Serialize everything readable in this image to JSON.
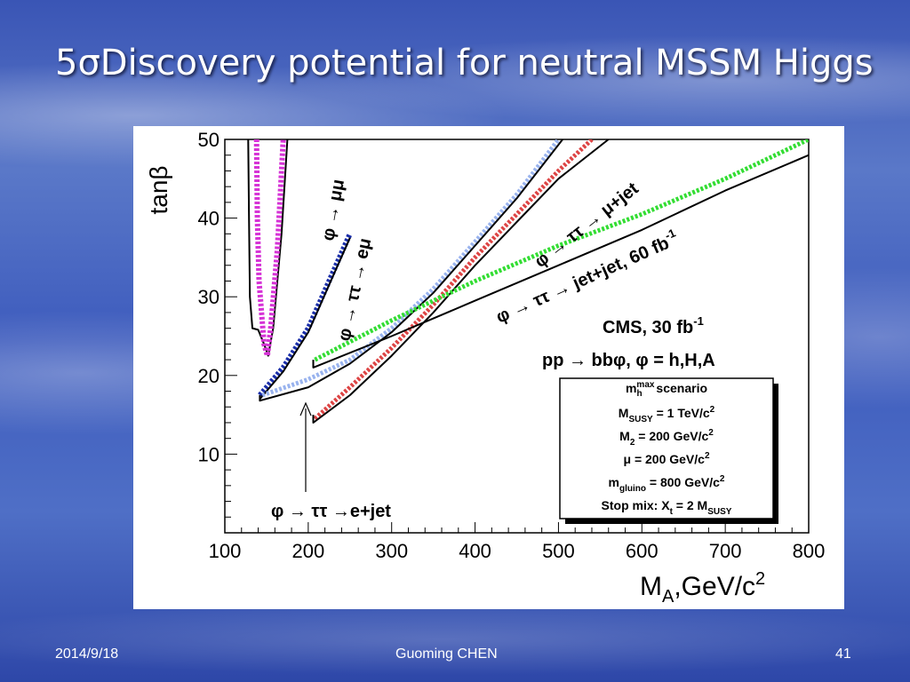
{
  "slide": {
    "title": "5σDiscovery potential for neutral MSSM Higgs",
    "date": "2014/9/18",
    "author": "Guoming CHEN",
    "page": "41"
  },
  "chart_data": {
    "type": "line",
    "xlabel": "M",
    "xlabel_sub": "A",
    "xlabel_unit": ",GeV/c",
    "xlabel_sup": "2",
    "ylabel": "tanβ",
    "xlim": [
      100,
      800
    ],
    "ylim": [
      0,
      50
    ],
    "x_ticks": [
      100,
      200,
      300,
      400,
      500,
      600,
      700,
      800
    ],
    "y_ticks": [
      10,
      20,
      30,
      40,
      50
    ],
    "grid": false,
    "series": [
      {
        "name": "φ → μμ",
        "color": "#000000",
        "dash": false,
        "width": 2,
        "points": [
          [
            128,
            50
          ],
          [
            129,
            40
          ],
          [
            130,
            30
          ],
          [
            133,
            26
          ],
          [
            140,
            25.8
          ],
          [
            147,
            24
          ],
          [
            152,
            22.5
          ],
          [
            158,
            26
          ],
          [
            168,
            38
          ],
          [
            175,
            50
          ]
        ]
      },
      {
        "name": "",
        "color": "#d633d6",
        "dash": true,
        "width": 6,
        "points": [
          [
            138,
            50
          ],
          [
            139,
            40
          ],
          [
            141,
            32
          ],
          [
            147,
            24
          ],
          [
            151,
            22.5
          ],
          [
            155,
            26
          ],
          [
            163,
            36
          ],
          [
            170,
            50
          ]
        ]
      },
      {
        "name": "φ → ττ → eμ",
        "color": "#1a2ea8",
        "dash": true,
        "width": 6,
        "points": [
          [
            142,
            17.5
          ],
          [
            170,
            21
          ],
          [
            200,
            26
          ],
          [
            225,
            32
          ],
          [
            250,
            38
          ]
        ]
      },
      {
        "name": "",
        "color": "#000000",
        "dash": false,
        "width": 2,
        "points": [
          [
            142,
            17
          ],
          [
            170,
            20.5
          ],
          [
            200,
            25.5
          ],
          [
            225,
            31.5
          ],
          [
            250,
            37.5
          ]
        ]
      },
      {
        "name": "φ → ττ → μ+jet",
        "color": "#99b3ee",
        "dash": true,
        "width": 5,
        "points": [
          [
            145,
            17.5
          ],
          [
            200,
            19.5
          ],
          [
            250,
            22
          ],
          [
            300,
            26
          ],
          [
            350,
            31
          ],
          [
            400,
            37
          ],
          [
            450,
            43
          ],
          [
            500,
            50
          ]
        ]
      },
      {
        "name": "",
        "color": "#000000",
        "dash": false,
        "width": 2,
        "points": [
          [
            142,
            17.5
          ],
          [
            142,
            16.8
          ],
          [
            200,
            18.5
          ],
          [
            250,
            21.5
          ],
          [
            300,
            25.5
          ],
          [
            350,
            30.5
          ],
          [
            400,
            36.5
          ],
          [
            450,
            42.5
          ],
          [
            505,
            50
          ]
        ]
      },
      {
        "name": "φ → ττ → e+jet",
        "color": "#dd4444",
        "dash": true,
        "width": 5,
        "points": [
          [
            208,
            14.5
          ],
          [
            250,
            18.5
          ],
          [
            300,
            23.5
          ],
          [
            350,
            29
          ],
          [
            400,
            35
          ],
          [
            450,
            40.5
          ],
          [
            500,
            46
          ],
          [
            540,
            50
          ]
        ]
      },
      {
        "name": "",
        "color": "#000000",
        "dash": false,
        "width": 2,
        "points": [
          [
            206,
            15
          ],
          [
            206,
            14
          ],
          [
            250,
            17.5
          ],
          [
            300,
            22.5
          ],
          [
            350,
            28
          ],
          [
            400,
            34
          ],
          [
            450,
            39.5
          ],
          [
            500,
            45
          ],
          [
            560,
            50
          ]
        ]
      },
      {
        "name": "φ → ττ → jet+jet, 60 fb-1",
        "color": "#33dd33",
        "dash": true,
        "width": 5,
        "points": [
          [
            208,
            22
          ],
          [
            300,
            27
          ],
          [
            400,
            32
          ],
          [
            500,
            36.5
          ],
          [
            600,
            40.5
          ],
          [
            700,
            45
          ],
          [
            800,
            50
          ]
        ]
      },
      {
        "name": "",
        "color": "#000000",
        "dash": false,
        "width": 2,
        "points": [
          [
            206,
            22
          ],
          [
            206,
            21
          ],
          [
            300,
            25
          ],
          [
            400,
            29.5
          ],
          [
            500,
            34
          ],
          [
            600,
            38.5
          ],
          [
            700,
            43.5
          ],
          [
            800,
            48
          ]
        ]
      }
    ],
    "annotations": {
      "mumu": "φ → μμ",
      "emu": "φ → ττ → eμ",
      "mujet": "φ → ττ → μ+jet",
      "jetjet": "φ → ττ → jet+jet, 60 fb",
      "jetjet_sup": "-1",
      "ejet": "φ → ττ →e+jet",
      "cms": "CMS, 30 fb",
      "cms_sup": "-1",
      "process": "pp → bbφ, φ = h,H,A"
    },
    "scenario_box": {
      "line1_main": "m",
      "line1_sup": "max",
      "line1_sub": "h",
      "line1_rest": " scenario",
      "line2_main": "M",
      "line2_sub": "SUSY",
      "line2_rest": " = 1 TeV/c",
      "line2_sup": "2",
      "line3_main": "M",
      "line3_sub": "2",
      "line3_rest": " = 200 GeV/c",
      "line3_sup": "2",
      "line4_main": "μ = 200 GeV/c",
      "line4_sup": "2",
      "line5_main": "m",
      "line5_sub": "gluino",
      "line5_rest": " = 800 GeV/c",
      "line5_sup": "2",
      "line6_main": "Stop mix: X",
      "line6_sub": "t",
      "line6_rest": " = 2 M",
      "line6_sub2": "SUSY"
    }
  }
}
